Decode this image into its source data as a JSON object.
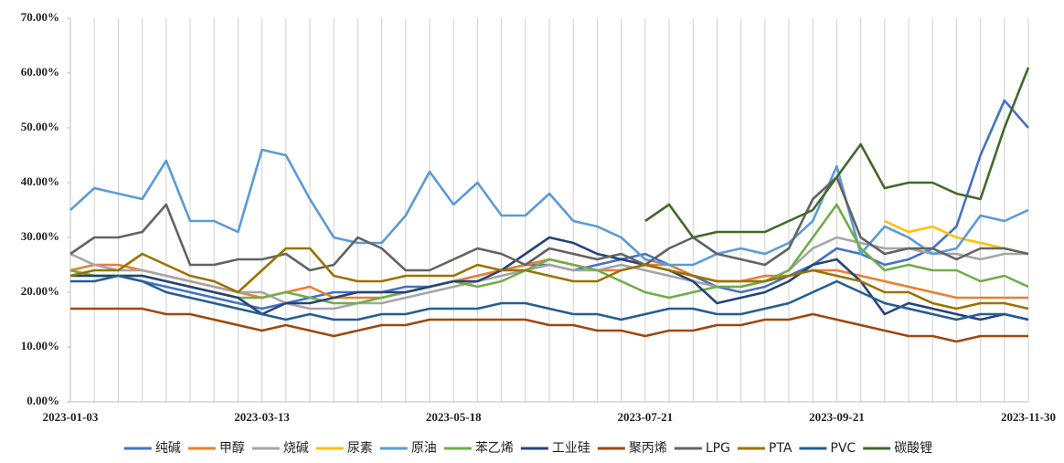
{
  "chart_data": {
    "type": "line",
    "categories": [
      "2023-01-03",
      null,
      null,
      null,
      null,
      null,
      null,
      null,
      "2023-03-13",
      null,
      null,
      null,
      null,
      null,
      null,
      null,
      "2023-05-18",
      null,
      null,
      null,
      null,
      null,
      null,
      null,
      "2023-07-21",
      null,
      null,
      null,
      null,
      null,
      null,
      null,
      "2023-09-21",
      null,
      null,
      null,
      null,
      null,
      null,
      null,
      "2023-11-30"
    ],
    "ylim": [
      0,
      70
    ],
    "yticks": [
      {
        "value": 0,
        "label": "0.00%"
      },
      {
        "value": 10,
        "label": "10.00%"
      },
      {
        "value": 20,
        "label": "20.00%"
      },
      {
        "value": 30,
        "label": "30.00%"
      },
      {
        "value": 40,
        "label": "40.00%"
      },
      {
        "value": 50,
        "label": "50.00%"
      },
      {
        "value": 60,
        "label": "60.00%"
      },
      {
        "value": 70,
        "label": "70.00%"
      }
    ],
    "grid": true,
    "legend": "bottom",
    "series": [
      {
        "name": "纯碱",
        "color": "#4472c4",
        "values": [
          24,
          23,
          23,
          22,
          21,
          20,
          19,
          18,
          17,
          18,
          19,
          20,
          20,
          20,
          21,
          21,
          22,
          23,
          24,
          25,
          25,
          24,
          25,
          26,
          27,
          25,
          23,
          21,
          20,
          21,
          23,
          25,
          28,
          27,
          25,
          26,
          28,
          32,
          45,
          55,
          50
        ]
      },
      {
        "name": "甲醇",
        "color": "#ed7d31",
        "values": [
          24,
          25,
          25,
          24,
          23,
          22,
          21,
          20,
          19,
          20,
          21,
          19,
          19,
          19,
          20,
          21,
          22,
          23,
          24,
          25,
          26,
          25,
          24,
          24,
          25,
          25,
          23,
          22,
          22,
          23,
          23,
          24,
          24,
          23,
          22,
          21,
          20,
          19,
          19,
          19,
          19
        ]
      },
      {
        "name": "烧碱",
        "color": "#a5a5a5",
        "values": [
          27,
          25,
          24,
          24,
          23,
          22,
          21,
          20,
          20,
          18,
          17,
          17,
          18,
          18,
          19,
          20,
          21,
          22,
          23,
          24,
          25,
          24,
          24,
          25,
          24,
          23,
          22,
          21,
          21,
          22,
          24,
          28,
          30,
          29,
          28,
          28,
          27,
          27,
          26,
          27,
          27
        ]
      },
      {
        "name": "尿素",
        "color": "#ffc000",
        "values": [
          null,
          null,
          null,
          null,
          null,
          null,
          null,
          null,
          null,
          null,
          null,
          null,
          null,
          null,
          null,
          null,
          null,
          null,
          null,
          null,
          null,
          null,
          null,
          null,
          null,
          null,
          null,
          null,
          null,
          null,
          null,
          null,
          null,
          null,
          33,
          31,
          32,
          30,
          29,
          28,
          27
        ]
      },
      {
        "name": "原油",
        "color": "#5b9bd5",
        "values": [
          35,
          39,
          38,
          37,
          44,
          33,
          33,
          31,
          46,
          45,
          37,
          30,
          29,
          29,
          34,
          42,
          36,
          40,
          34,
          34,
          38,
          33,
          32,
          30,
          26,
          25,
          25,
          27,
          28,
          27,
          29,
          33,
          43,
          27,
          32,
          30,
          27,
          28,
          34,
          33,
          35
        ]
      },
      {
        "name": "苯乙烯",
        "color": "#70ad47",
        "values": [
          24,
          23,
          23,
          23,
          22,
          21,
          20,
          19,
          19,
          20,
          19,
          18,
          18,
          19,
          20,
          21,
          22,
          21,
          22,
          24,
          26,
          25,
          24,
          22,
          20,
          19,
          20,
          21,
          21,
          22,
          24,
          30,
          36,
          28,
          24,
          25,
          24,
          24,
          22,
          23,
          21
        ]
      },
      {
        "name": "工业硅",
        "color": "#264478",
        "values": [
          23,
          23,
          23,
          23,
          22,
          21,
          20,
          19,
          16,
          18,
          18,
          19,
          20,
          20,
          20,
          21,
          22,
          22,
          24,
          27,
          30,
          29,
          27,
          26,
          25,
          24,
          22,
          18,
          19,
          20,
          22,
          25,
          26,
          22,
          16,
          18,
          17,
          16,
          15,
          16,
          15
        ]
      },
      {
        "name": "聚丙烯",
        "color": "#9e480e",
        "values": [
          17,
          17,
          17,
          17,
          16,
          16,
          15,
          14,
          13,
          14,
          13,
          12,
          13,
          14,
          14,
          15,
          15,
          15,
          15,
          15,
          14,
          14,
          13,
          13,
          12,
          13,
          13,
          14,
          14,
          15,
          15,
          16,
          15,
          14,
          13,
          12,
          12,
          11,
          12,
          12,
          12
        ]
      },
      {
        "name": "LPG",
        "color": "#636363",
        "values": [
          27,
          30,
          30,
          31,
          36,
          25,
          25,
          26,
          26,
          27,
          24,
          25,
          30,
          28,
          24,
          24,
          26,
          28,
          27,
          25,
          28,
          27,
          26,
          27,
          25,
          28,
          30,
          27,
          26,
          25,
          28,
          37,
          41,
          30,
          27,
          28,
          28,
          26,
          28,
          28,
          27
        ]
      },
      {
        "name": "PTA",
        "color": "#997300",
        "values": [
          23,
          24,
          24,
          27,
          25,
          23,
          22,
          20,
          24,
          28,
          28,
          23,
          22,
          22,
          23,
          23,
          23,
          25,
          24,
          24,
          23,
          22,
          22,
          24,
          25,
          24,
          23,
          22,
          22,
          22,
          23,
          24,
          23,
          22,
          20,
          20,
          18,
          17,
          18,
          18,
          17
        ]
      },
      {
        "name": "PVC",
        "color": "#255e91",
        "values": [
          22,
          22,
          23,
          22,
          20,
          19,
          18,
          17,
          16,
          15,
          16,
          15,
          15,
          16,
          16,
          17,
          17,
          17,
          18,
          18,
          17,
          16,
          16,
          15,
          16,
          17,
          17,
          16,
          16,
          17,
          18,
          20,
          22,
          20,
          18,
          17,
          16,
          15,
          16,
          16,
          15
        ]
      },
      {
        "name": "碳酸锂",
        "color": "#43682b",
        "values": [
          null,
          null,
          null,
          null,
          null,
          null,
          null,
          null,
          null,
          null,
          null,
          null,
          null,
          null,
          null,
          null,
          null,
          null,
          null,
          null,
          null,
          null,
          null,
          null,
          33,
          36,
          30,
          31,
          31,
          31,
          33,
          35,
          41,
          47,
          39,
          40,
          40,
          38,
          37,
          50,
          61
        ]
      }
    ]
  }
}
